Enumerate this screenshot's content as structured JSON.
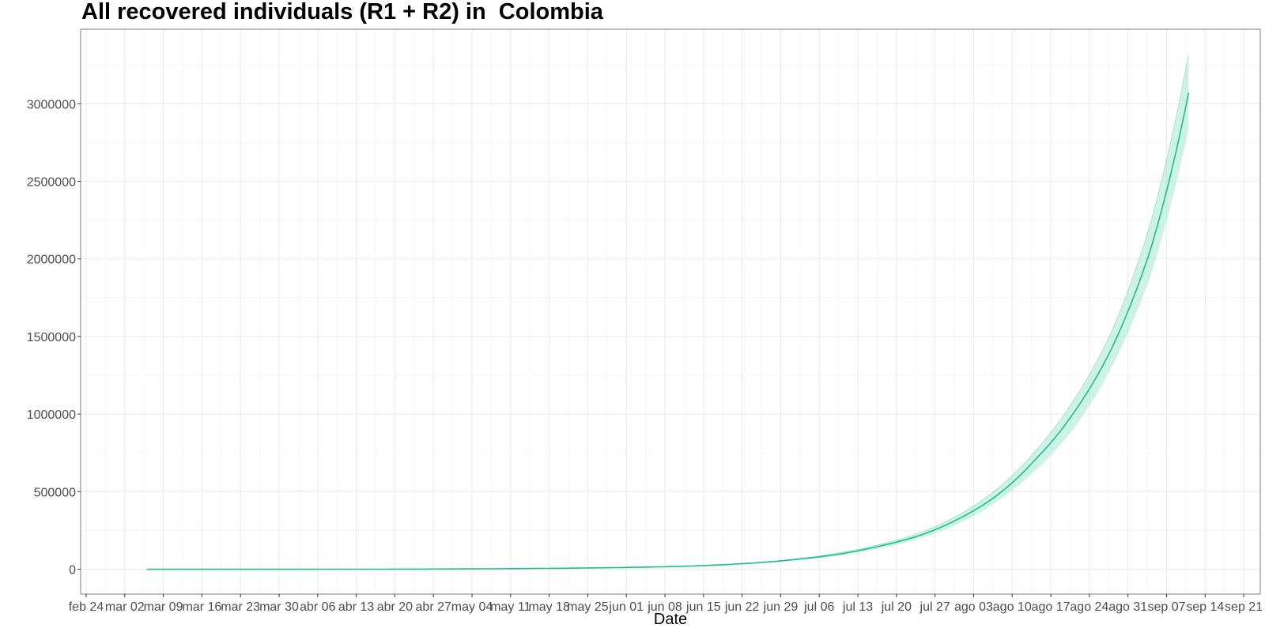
{
  "chart_data": {
    "type": "line",
    "title": "All recovered individuals (R1 + R2) in  Colombia",
    "xlabel": "Date",
    "ylabel": "",
    "x_axis": {
      "type": "date",
      "range": [
        "2020-02-23",
        "2020-09-24"
      ],
      "tick_labels": [
        "feb 24",
        "mar 02",
        "mar 09",
        "mar 16",
        "mar 23",
        "mar 30",
        "abr 06",
        "abr 13",
        "abr 20",
        "abr 27",
        "may 04",
        "may 11",
        "may 18",
        "may 25",
        "jun 01",
        "jun 08",
        "jun 15",
        "jun 22",
        "jun 29",
        "jul 06",
        "jul 13",
        "jul 20",
        "jul 27",
        "ago 03",
        "ago 10",
        "ago 17",
        "ago 24",
        "ago 31",
        "sep 07",
        "sep 14",
        "sep 21"
      ],
      "tick_dates": [
        "2020-02-24",
        "2020-03-02",
        "2020-03-09",
        "2020-03-16",
        "2020-03-23",
        "2020-03-30",
        "2020-04-06",
        "2020-04-13",
        "2020-04-20",
        "2020-04-27",
        "2020-05-04",
        "2020-05-11",
        "2020-05-18",
        "2020-05-25",
        "2020-06-01",
        "2020-06-08",
        "2020-06-15",
        "2020-06-22",
        "2020-06-29",
        "2020-07-06",
        "2020-07-13",
        "2020-07-20",
        "2020-07-27",
        "2020-08-03",
        "2020-08-10",
        "2020-08-17",
        "2020-08-24",
        "2020-08-31",
        "2020-09-07",
        "2020-09-14",
        "2020-09-21"
      ]
    },
    "y_axis": {
      "range": [
        -160000,
        3480000
      ],
      "ticks": [
        0,
        500000,
        1000000,
        1500000,
        2000000,
        2500000,
        3000000
      ],
      "tick_labels": [
        "0",
        "500000",
        "1000000",
        "1500000",
        "2000000",
        "2500000",
        "3000000"
      ]
    },
    "grid": true,
    "legend": "none",
    "series": [
      {
        "color": "#1bbf8f",
        "band_color": "#a8e8d4",
        "x": [
          "2020-03-06",
          "2020-03-20",
          "2020-04-03",
          "2020-04-17",
          "2020-05-01",
          "2020-05-15",
          "2020-05-29",
          "2020-06-12",
          "2020-06-19",
          "2020-06-26",
          "2020-07-03",
          "2020-07-10",
          "2020-07-17",
          "2020-07-24",
          "2020-07-31",
          "2020-08-07",
          "2020-08-14",
          "2020-08-21",
          "2020-08-28",
          "2020-09-04",
          "2020-09-11"
        ],
        "y": [
          0,
          0,
          0,
          500,
          2000,
          5000,
          10000,
          20000,
          30000,
          45000,
          68000,
          100000,
          150000,
          215000,
          320000,
          470000,
          700000,
          1000000,
          1420000,
          2050000,
          3070000
        ],
        "lower": [
          0,
          0,
          0,
          500,
          2000,
          5000,
          10000,
          19000,
          28000,
          42000,
          62000,
          92000,
          135000,
          195000,
          290000,
          430000,
          630000,
          900000,
          1300000,
          1880000,
          2840000
        ],
        "upper": [
          0,
          0,
          0,
          500,
          2000,
          5000,
          10000,
          21000,
          32000,
          48000,
          72000,
          108000,
          160000,
          232000,
          345000,
          510000,
          755000,
          1080000,
          1530000,
          2220000,
          3320000
        ]
      }
    ]
  }
}
